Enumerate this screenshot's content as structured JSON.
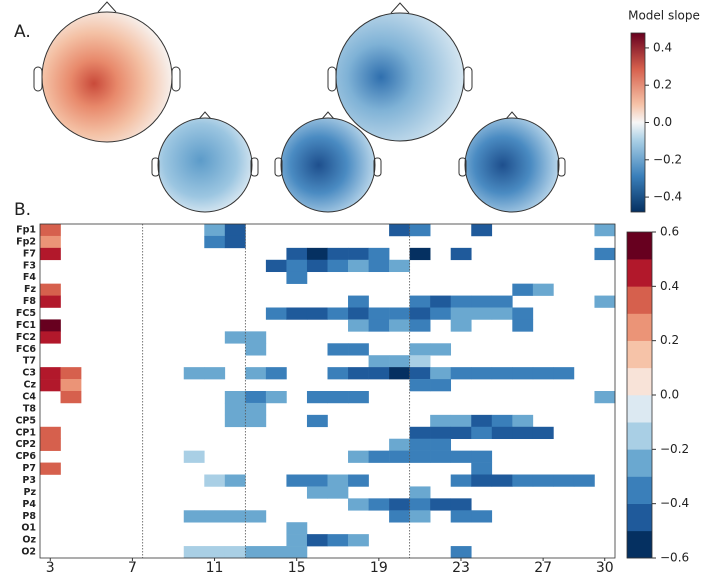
{
  "chart_data": {
    "type": "heatmap",
    "panel_labels": [
      "A.",
      "B."
    ],
    "colorbar_a": {
      "title": "Model slope",
      "lim": [
        -0.48,
        0.48
      ],
      "ticks": [
        0.4,
        0.2,
        {
          "value": 0,
          "label": "0.0"
        },
        -0.2,
        -0.4
      ]
    },
    "categories": [
      "Fp1",
      "Fp2",
      "F7",
      "F3",
      "F4",
      "Fz",
      "F8",
      "FC5",
      "FC1",
      "FC2",
      "FC6",
      "T7",
      "C3",
      "Cz",
      "C4",
      "T8",
      "CP5",
      "CP1",
      "CP2",
      "CP6",
      "P7",
      "P3",
      "Pz",
      "P4",
      "P8",
      "O1",
      "Oz",
      "O2"
    ],
    "x": [
      3,
      4,
      5,
      6,
      7,
      8,
      9,
      10,
      11,
      12,
      13,
      14,
      15,
      16,
      17,
      18,
      19,
      20,
      21,
      22,
      23,
      24,
      25,
      26,
      27,
      28,
      29,
      30
    ],
    "xlim": [
      2.5,
      30.5
    ],
    "xticks": [
      3,
      7,
      11,
      15,
      19,
      23,
      27,
      30
    ],
    "dividers": [
      7.5,
      12.5,
      20.5
    ],
    "clim": [
      -0.6,
      0.6
    ],
    "cticks": [
      0.6,
      0.4,
      0.2,
      {
        "value": 0,
        "label": "0.0"
      },
      -0.2,
      -0.4,
      -0.6
    ],
    "colors": [
      "#053061",
      "#1f5a9b",
      "#3a7fba",
      "#6aa8d0",
      "#a9cfe5",
      "#dce9f2",
      "#f8e3d8",
      "#f6c3a8",
      "#eb9477",
      "#d6604d",
      "#b2182b",
      "#67001f"
    ],
    "values": [
      [
        0.35,
        null,
        null,
        null,
        null,
        null,
        null,
        null,
        -0.25,
        -0.45,
        null,
        null,
        null,
        null,
        null,
        null,
        null,
        -0.45,
        -0.35,
        null,
        null,
        -0.45,
        null,
        null,
        null,
        null,
        null,
        -0.25
      ],
      [
        0.25,
        null,
        null,
        null,
        null,
        null,
        null,
        null,
        -0.35,
        -0.45,
        null,
        null,
        null,
        null,
        null,
        null,
        null,
        null,
        null,
        null,
        null,
        null,
        null,
        null,
        null,
        null,
        null,
        null
      ],
      [
        0.45,
        null,
        null,
        null,
        null,
        null,
        null,
        null,
        null,
        null,
        null,
        null,
        -0.45,
        -0.55,
        -0.45,
        -0.45,
        -0.35,
        null,
        -0.55,
        null,
        -0.45,
        null,
        null,
        null,
        null,
        null,
        null,
        -0.35
      ],
      [
        null,
        null,
        null,
        null,
        null,
        null,
        null,
        null,
        null,
        null,
        null,
        -0.45,
        -0.35,
        -0.45,
        -0.35,
        -0.25,
        -0.35,
        -0.25,
        null,
        null,
        null,
        null,
        null,
        null,
        null,
        null,
        null,
        null
      ],
      [
        null,
        null,
        null,
        null,
        null,
        null,
        null,
        null,
        null,
        null,
        null,
        null,
        -0.35,
        null,
        null,
        null,
        null,
        null,
        null,
        null,
        null,
        null,
        null,
        null,
        null,
        null,
        null,
        null
      ],
      [
        0.35,
        null,
        null,
        null,
        null,
        null,
        null,
        null,
        null,
        null,
        null,
        null,
        null,
        null,
        null,
        null,
        null,
        null,
        null,
        null,
        null,
        null,
        null,
        -0.35,
        -0.25,
        null,
        null,
        null
      ],
      [
        0.45,
        null,
        null,
        null,
        null,
        null,
        null,
        null,
        null,
        null,
        null,
        null,
        null,
        null,
        null,
        -0.35,
        null,
        null,
        -0.35,
        -0.45,
        -0.35,
        -0.35,
        -0.35,
        null,
        null,
        null,
        null,
        -0.25
      ],
      [
        null,
        null,
        null,
        null,
        null,
        null,
        null,
        null,
        null,
        null,
        null,
        -0.35,
        -0.45,
        -0.45,
        -0.35,
        -0.45,
        -0.35,
        -0.35,
        -0.45,
        -0.35,
        -0.25,
        -0.25,
        -0.25,
        -0.35,
        null,
        null,
        null,
        null
      ],
      [
        0.55,
        null,
        null,
        null,
        null,
        null,
        null,
        null,
        null,
        null,
        null,
        null,
        null,
        null,
        null,
        -0.25,
        -0.35,
        -0.25,
        -0.35,
        null,
        -0.25,
        null,
        null,
        -0.35,
        null,
        null,
        null,
        null
      ],
      [
        0.45,
        null,
        null,
        null,
        null,
        null,
        null,
        null,
        null,
        -0.25,
        -0.25,
        null,
        null,
        null,
        null,
        null,
        null,
        null,
        null,
        null,
        null,
        null,
        null,
        null,
        null,
        null,
        null,
        null
      ],
      [
        null,
        null,
        null,
        null,
        null,
        null,
        null,
        null,
        null,
        null,
        -0.25,
        null,
        null,
        null,
        -0.35,
        -0.35,
        null,
        null,
        -0.25,
        -0.25,
        null,
        null,
        null,
        null,
        null,
        null,
        null,
        null
      ],
      [
        null,
        null,
        null,
        null,
        null,
        null,
        null,
        null,
        null,
        null,
        null,
        null,
        null,
        null,
        null,
        null,
        -0.25,
        -0.25,
        -0.15,
        null,
        null,
        null,
        null,
        null,
        null,
        null,
        null,
        null
      ],
      [
        0.45,
        0.35,
        null,
        null,
        null,
        null,
        null,
        -0.25,
        -0.25,
        null,
        -0.25,
        -0.35,
        null,
        null,
        -0.35,
        -0.45,
        -0.45,
        -0.55,
        -0.45,
        -0.25,
        -0.35,
        -0.35,
        -0.35,
        -0.35,
        -0.35,
        -0.35,
        null,
        null
      ],
      [
        0.45,
        0.25,
        null,
        null,
        null,
        null,
        null,
        null,
        null,
        null,
        null,
        null,
        null,
        null,
        null,
        null,
        null,
        null,
        -0.35,
        -0.35,
        null,
        null,
        null,
        null,
        null,
        null,
        null,
        null
      ],
      [
        null,
        0.35,
        null,
        null,
        null,
        null,
        null,
        null,
        null,
        -0.25,
        -0.35,
        -0.25,
        null,
        -0.35,
        -0.35,
        -0.35,
        null,
        null,
        null,
        null,
        null,
        null,
        null,
        null,
        null,
        null,
        null,
        -0.25
      ],
      [
        null,
        null,
        null,
        null,
        null,
        null,
        null,
        null,
        null,
        -0.25,
        -0.25,
        null,
        null,
        null,
        null,
        null,
        null,
        null,
        null,
        null,
        null,
        null,
        null,
        null,
        null,
        null,
        null,
        null
      ],
      [
        null,
        null,
        null,
        null,
        null,
        null,
        null,
        null,
        null,
        -0.25,
        -0.25,
        null,
        null,
        -0.35,
        null,
        null,
        null,
        null,
        null,
        -0.25,
        -0.25,
        -0.45,
        -0.35,
        -0.25,
        null,
        null,
        null,
        null
      ],
      [
        0.35,
        null,
        null,
        null,
        null,
        null,
        null,
        null,
        null,
        null,
        null,
        null,
        null,
        null,
        null,
        null,
        null,
        null,
        -0.45,
        -0.45,
        -0.45,
        -0.35,
        -0.45,
        -0.45,
        -0.45,
        null,
        null,
        null
      ],
      [
        0.35,
        null,
        null,
        null,
        null,
        null,
        null,
        null,
        null,
        null,
        null,
        null,
        null,
        null,
        null,
        null,
        null,
        -0.25,
        -0.35,
        -0.35,
        null,
        null,
        null,
        null,
        null,
        null,
        null,
        null
      ],
      [
        null,
        null,
        null,
        null,
        null,
        null,
        null,
        -0.15,
        null,
        null,
        null,
        null,
        null,
        null,
        null,
        -0.25,
        -0.35,
        -0.35,
        -0.35,
        -0.35,
        -0.35,
        -0.35,
        null,
        null,
        null,
        null,
        null,
        null
      ],
      [
        0.35,
        null,
        null,
        null,
        null,
        null,
        null,
        null,
        null,
        null,
        null,
        null,
        null,
        null,
        null,
        null,
        null,
        null,
        null,
        null,
        null,
        -0.35,
        null,
        null,
        null,
        null,
        null,
        null
      ],
      [
        null,
        null,
        null,
        null,
        null,
        null,
        null,
        null,
        -0.15,
        -0.25,
        null,
        null,
        -0.35,
        -0.35,
        -0.25,
        -0.35,
        null,
        null,
        null,
        null,
        -0.35,
        -0.45,
        -0.45,
        -0.35,
        -0.35,
        -0.35,
        -0.35,
        null
      ],
      [
        null,
        null,
        null,
        null,
        null,
        null,
        null,
        null,
        null,
        null,
        null,
        null,
        null,
        -0.25,
        -0.25,
        null,
        null,
        null,
        -0.25,
        null,
        null,
        null,
        null,
        null,
        null,
        null,
        null,
        null
      ],
      [
        null,
        null,
        null,
        null,
        null,
        null,
        null,
        null,
        null,
        null,
        null,
        null,
        null,
        null,
        null,
        -0.25,
        -0.35,
        -0.45,
        -0.35,
        -0.45,
        -0.45,
        null,
        null,
        null,
        null,
        null,
        null,
        null
      ],
      [
        null,
        null,
        null,
        null,
        null,
        null,
        null,
        -0.25,
        -0.25,
        -0.25,
        -0.25,
        null,
        null,
        null,
        null,
        null,
        null,
        -0.35,
        -0.25,
        null,
        -0.35,
        -0.35,
        null,
        null,
        null,
        null,
        null,
        null
      ],
      [
        null,
        null,
        null,
        null,
        null,
        null,
        null,
        null,
        null,
        null,
        null,
        null,
        -0.25,
        null,
        null,
        null,
        null,
        null,
        null,
        null,
        null,
        null,
        null,
        null,
        null,
        null,
        null,
        null
      ],
      [
        null,
        null,
        null,
        null,
        null,
        null,
        null,
        null,
        null,
        null,
        null,
        null,
        -0.25,
        -0.45,
        -0.35,
        -0.25,
        null,
        null,
        null,
        null,
        null,
        null,
        null,
        null,
        null,
        null,
        null,
        null
      ],
      [
        null,
        null,
        null,
        null,
        null,
        null,
        null,
        -0.15,
        -0.15,
        -0.15,
        -0.25,
        -0.25,
        -0.25,
        null,
        null,
        null,
        null,
        null,
        null,
        null,
        -0.35,
        null,
        null,
        null,
        null,
        null,
        null,
        null
      ]
    ]
  }
}
